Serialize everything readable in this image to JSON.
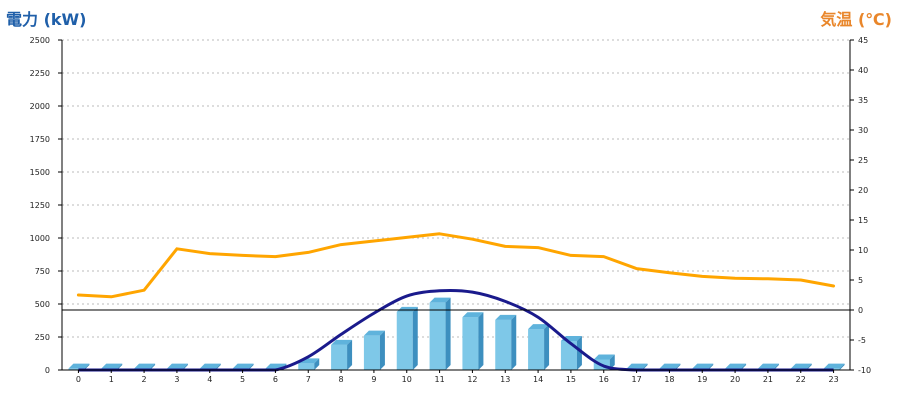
{
  "chart_data": {
    "type": "bar",
    "left_axis_title": "電力 (kW)",
    "right_axis_title": "気温 (℃)",
    "categories": [
      "0",
      "1",
      "2",
      "3",
      "4",
      "5",
      "6",
      "7",
      "8",
      "9",
      "10",
      "11",
      "12",
      "13",
      "14",
      "15",
      "16",
      "17",
      "18",
      "19",
      "20",
      "21",
      "22",
      "23"
    ],
    "left_ticks": [
      "0",
      "250",
      "500",
      "750",
      "1000",
      "1250",
      "1500",
      "1750",
      "2000",
      "2250",
      "2500"
    ],
    "right_ticks": [
      "-10",
      "-5",
      "0",
      "5",
      "10",
      "15",
      "20",
      "25",
      "30",
      "35",
      "40",
      "45"
    ],
    "left_ylim": [
      0,
      2500
    ],
    "right_ylim": [
      -10,
      45
    ],
    "grid": true,
    "series": [
      {
        "kind": "bar",
        "axis": "left",
        "color": "#7ec8e8",
        "values": [
          10,
          10,
          10,
          10,
          10,
          10,
          10,
          50,
          190,
          260,
          440,
          510,
          400,
          380,
          310,
          220,
          80,
          10,
          10,
          10,
          10,
          10,
          10,
          10
        ]
      },
      {
        "kind": "curve",
        "axis": "left",
        "color": "#1a1a8c",
        "values": [
          0,
          0,
          0,
          0,
          0,
          0,
          0,
          100,
          270,
          430,
          560,
          600,
          590,
          520,
          400,
          200,
          30,
          0,
          0,
          0,
          0,
          0,
          0,
          0
        ]
      },
      {
        "kind": "line",
        "axis": "right",
        "color": "#ffa500",
        "values": [
          2.5,
          2.2,
          3.3,
          10.2,
          9.4,
          9.1,
          8.9,
          9.6,
          10.9,
          11.5,
          12.1,
          12.7,
          11.8,
          10.6,
          10.4,
          9.1,
          8.9,
          6.9,
          6.2,
          5.6,
          5.3,
          5.2,
          5.0,
          4.0
        ]
      }
    ]
  }
}
